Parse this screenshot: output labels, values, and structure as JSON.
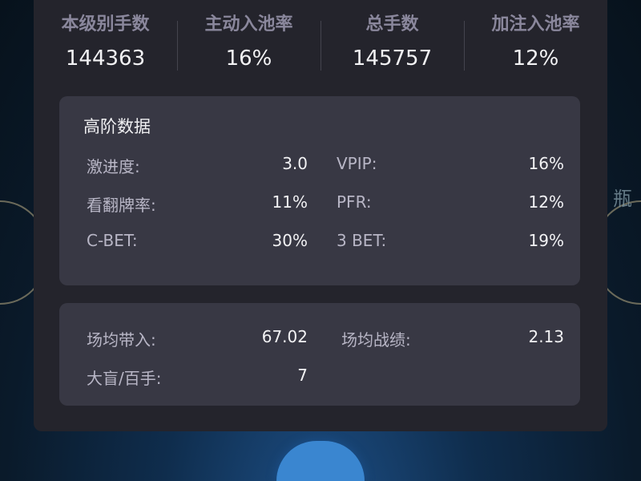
{
  "background": {
    "edge_text_right": "瓶"
  },
  "summary": [
    {
      "label": "本级别手数",
      "value": "144363"
    },
    {
      "label": "主动入池率",
      "value": "16%"
    },
    {
      "label": "总手数",
      "value": "145757"
    },
    {
      "label": "加注入池率",
      "value": "12%"
    }
  ],
  "advanced": {
    "title": "高阶数据",
    "left": [
      {
        "label": "激进度:",
        "value": "3.0"
      },
      {
        "label": "看翻牌率:",
        "value": "11%"
      },
      {
        "label": "C-BET:",
        "value": "30%"
      }
    ],
    "right": [
      {
        "label": "VPIP:",
        "value": "16%"
      },
      {
        "label": "PFR:",
        "value": "12%"
      },
      {
        "label": "3 BET:",
        "value": "19%"
      }
    ]
  },
  "session": {
    "left": [
      {
        "label": "场均带入:",
        "value": "67.02"
      },
      {
        "label": "大盲/百手:",
        "value": "7"
      }
    ],
    "right": [
      {
        "label": "场均战绩:",
        "value": "2.13"
      }
    ]
  }
}
